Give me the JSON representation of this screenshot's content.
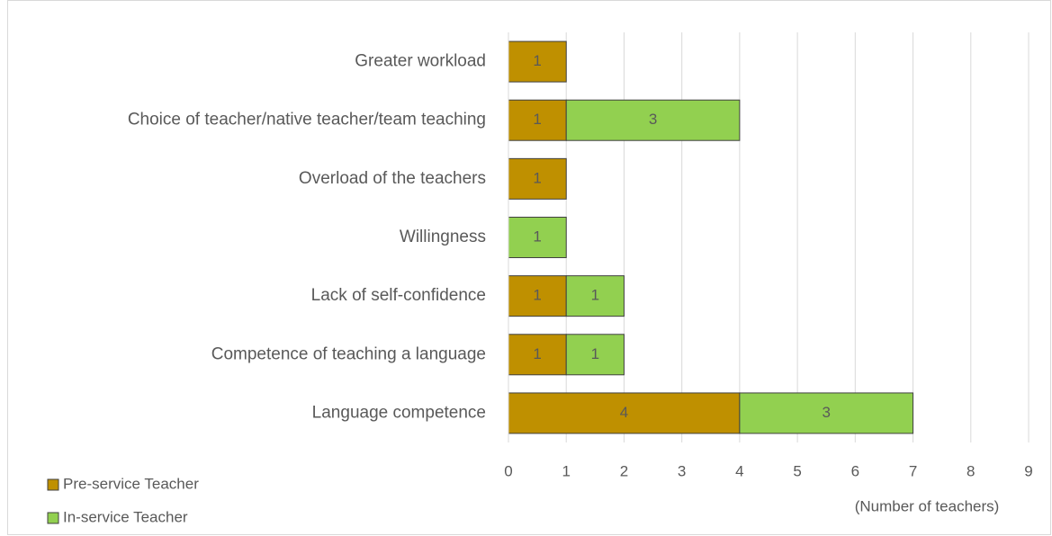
{
  "chart_data": {
    "type": "bar",
    "orientation": "horizontal",
    "stacked": true,
    "categories": [
      "Greater workload",
      "Choice of teacher/native teacher/team teaching",
      "Overload of the teachers",
      "Willingness",
      "Lack of self-confidence",
      "Competence of teaching a language",
      "Language competence"
    ],
    "series": [
      {
        "name": "Pre-service Teacher",
        "color": "#bf9000",
        "values": [
          1,
          1,
          1,
          null,
          1,
          1,
          4
        ]
      },
      {
        "name": "In-service Teacher",
        "color": "#92d050",
        "values": [
          null,
          3,
          null,
          1,
          1,
          1,
          3
        ]
      }
    ],
    "xlabel": "(Number of teachers)",
    "xlim": [
      0,
      9
    ],
    "xticks": [
      0,
      1,
      2,
      3,
      4,
      5,
      6,
      7,
      8,
      9
    ],
    "grid": true,
    "legend": "bottom-left"
  }
}
